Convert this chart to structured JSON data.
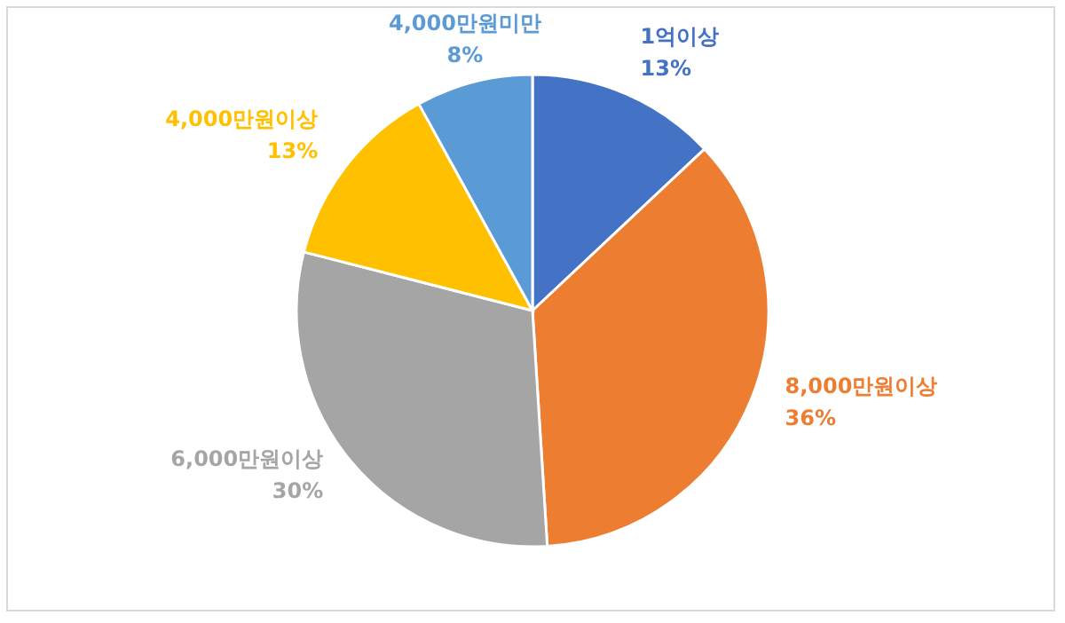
{
  "chart_data": {
    "type": "pie",
    "categories": [
      "1억이상",
      "8,000만원이상",
      "6,000만원이상",
      "4,000만원이상",
      "4,000만원미만"
    ],
    "values": [
      13,
      36,
      30,
      13,
      8
    ],
    "colors": [
      "#4472c4",
      "#ed7d31",
      "#a5a5a5",
      "#ffc000",
      "#5b9bd5"
    ],
    "value_labels": [
      "13%",
      "36%",
      "30%",
      "13%",
      "8%"
    ]
  }
}
